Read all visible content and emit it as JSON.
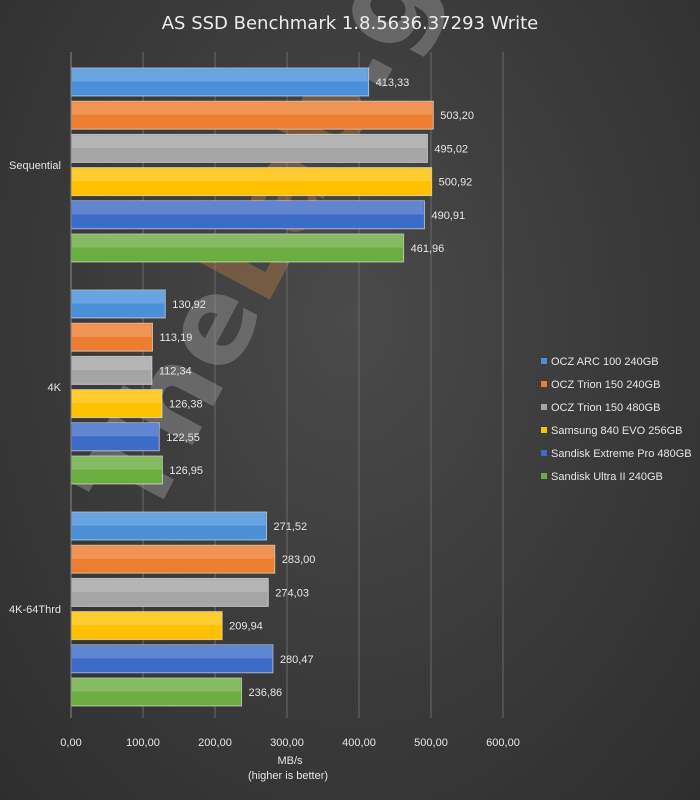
{
  "chart_data": {
    "type": "bar",
    "orientation": "horizontal",
    "title": "AS SSD Benchmark  1.8.5636.37293  Write",
    "xlabel": "MB/s",
    "xlabel_note": "(higher is better)",
    "xlim": [
      0,
      600
    ],
    "xticks": [
      "0,00",
      "100,00",
      "200,00",
      "300,00",
      "400,00",
      "500,00",
      "600,00"
    ],
    "categories": [
      "Sequential",
      "4K",
      "4K-64Thrd"
    ],
    "grid": "vertical",
    "legend_position": "right",
    "watermark": {
      "part1": "The",
      "part2": "Lab",
      "part3": ".gr"
    },
    "series": [
      {
        "name": "OCZ ARC 100 240GB",
        "color": "#4a90d9",
        "values": [
          413.33,
          130.92,
          271.52
        ],
        "labels": [
          "413,33",
          "130,92",
          "271,52"
        ]
      },
      {
        "name": "OCZ Trion 150 240GB",
        "color": "#ed7d31",
        "values": [
          503.2,
          113.19,
          283.0
        ],
        "labels": [
          "503,20",
          "113,19",
          "283,00"
        ]
      },
      {
        "name": "OCZ Trion 150 480GB",
        "color": "#a5a5a5",
        "values": [
          495.02,
          112.34,
          274.03
        ],
        "labels": [
          "495,02",
          "112,34",
          "274,03"
        ]
      },
      {
        "name": "Samsung 840 EVO 256GB",
        "color": "#ffc000",
        "values": [
          500.92,
          126.38,
          209.94
        ],
        "labels": [
          "500,92",
          "126,38",
          "209,94"
        ]
      },
      {
        "name": "Sandisk Extreme Pro 480GB",
        "color": "#3d6cc8",
        "values": [
          490.91,
          122.55,
          280.47
        ],
        "labels": [
          "490,91",
          "122,55",
          "280,47"
        ]
      },
      {
        "name": "Sandisk Ultra II 240GB",
        "color": "#6cad42",
        "values": [
          461.96,
          126.95,
          236.86
        ],
        "labels": [
          "461,96",
          "126,95",
          "236,86"
        ]
      }
    ]
  }
}
